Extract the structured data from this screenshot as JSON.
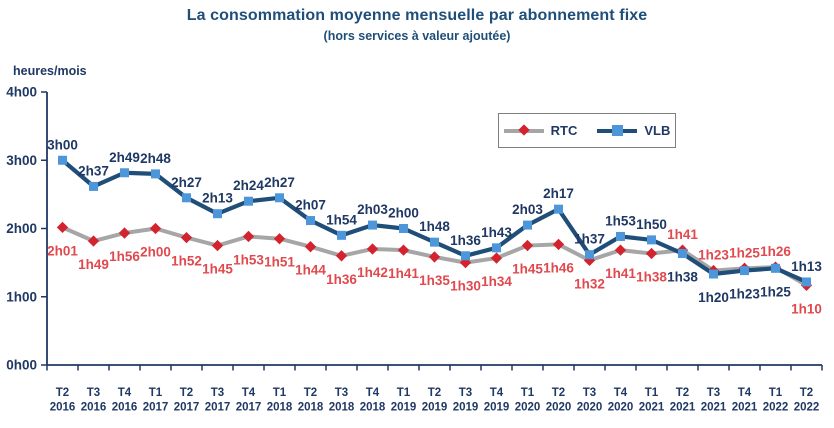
{
  "header": {
    "title": "La consommation moyenne mensuelle par abonnement fixe",
    "subtitle": "(hors services à valeur ajoutée)"
  },
  "chart_data": {
    "type": "line",
    "unit_label": "heures/mois",
    "y_ticks": [
      "0h00",
      "1h00",
      "2h00",
      "3h00",
      "4h00"
    ],
    "ylim_hours": [
      0,
      4
    ],
    "grid": false,
    "legend_position": "top-right-inside",
    "axis_color": "#1F3864",
    "text_color": "#1F3864",
    "x_quarters": [
      "T2",
      "T3",
      "T4",
      "T1",
      "T2",
      "T3",
      "T4",
      "T1",
      "T2",
      "T3",
      "T4",
      "T1",
      "T2",
      "T3",
      "T4",
      "T1",
      "T2",
      "T3",
      "T4",
      "T1",
      "T2",
      "T3",
      "T4",
      "T1",
      "T2"
    ],
    "x_years": [
      "2016",
      "2016",
      "2016",
      "2017",
      "2017",
      "2017",
      "2017",
      "2018",
      "2018",
      "2018",
      "2018",
      "2019",
      "2019",
      "2019",
      "2019",
      "2020",
      "2020",
      "2020",
      "2020",
      "2021",
      "2021",
      "2021",
      "2021",
      "2022",
      "2022"
    ],
    "series": [
      {
        "name": "RTC",
        "marker": "diamond",
        "line_color": "#A6A6A6",
        "marker_color": "#D2232E",
        "label_color": "#E0494E",
        "values": [
          "2h01",
          "1h49",
          "1h56",
          "2h00",
          "1h52",
          "1h45",
          "1h53",
          "1h51",
          "1h44",
          "1h36",
          "1h42",
          "1h41",
          "1h35",
          "1h30",
          "1h34",
          "1h45",
          "1h46",
          "1h32",
          "1h41",
          "1h38",
          "1h41",
          "1h23",
          "1h25",
          "1h26",
          "1h10"
        ]
      },
      {
        "name": "VLB",
        "marker": "square",
        "line_color": "#1F4E79",
        "marker_color": "#4D96D9",
        "label_color": "#1F3864",
        "values": [
          "3h00",
          "2h37",
          "2h49",
          "2h48",
          "2h27",
          "2h13",
          "2h24",
          "2h27",
          "2h07",
          "1h54",
          "2h03",
          "2h00",
          "1h48",
          "1h36",
          "1h43",
          "2h03",
          "2h17",
          "1h37",
          "1h53",
          "1h50",
          "1h38",
          "1h20",
          "1h23",
          "1h25",
          "1h13"
        ]
      }
    ]
  }
}
